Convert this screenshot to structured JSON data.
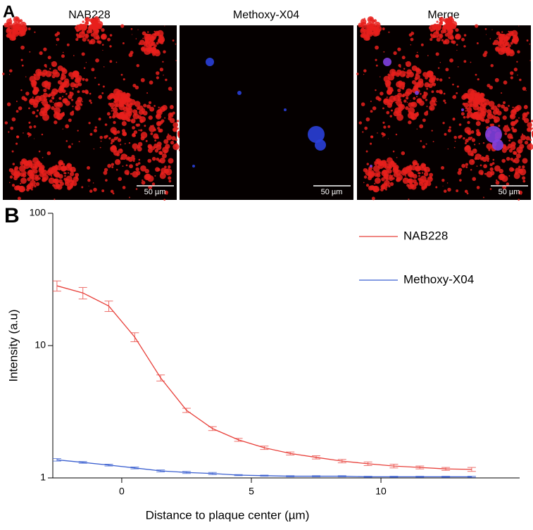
{
  "panels": {
    "a": {
      "label": "A",
      "images": [
        {
          "title": "NAB228",
          "scale_bar": "50 µm"
        },
        {
          "title": "Methoxy-X04",
          "scale_bar": "50 µm"
        },
        {
          "title": "Merge",
          "scale_bar": "50 µm"
        }
      ]
    },
    "b": {
      "label": "B"
    }
  },
  "chart_data": {
    "type": "line",
    "x_label": "Distance to plaque center (µm)",
    "y_label": "Intensity (a.u)",
    "log_y": true,
    "legend": "upper right",
    "x": [
      -2.5,
      -1.5,
      -0.5,
      0.5,
      1.5,
      2.5,
      3.5,
      4.5,
      5.5,
      6.5,
      7.5,
      8.5,
      9.5,
      10.5,
      11.5,
      12.5,
      13.5
    ],
    "series": [
      {
        "name": "NAB228",
        "color": "#e8403a",
        "values": [
          28.3,
          25,
          19.9,
          11.6,
          5.7,
          3.24,
          2.36,
          1.94,
          1.69,
          1.53,
          1.43,
          1.34,
          1.28,
          1.23,
          1.2,
          1.17,
          1.16
        ],
        "errors": [
          2.5,
          2.5,
          1.8,
          0.9,
          0.3,
          0.12,
          0.08,
          0.05,
          0.05,
          0.04,
          0.04,
          0.04,
          0.04,
          0.04,
          0.03,
          0.03,
          0.04
        ]
      },
      {
        "name": "Methoxy-X04",
        "color": "#3a5fd0",
        "values": [
          1.37,
          1.31,
          1.25,
          1.19,
          1.13,
          1.1,
          1.08,
          1.05,
          1.04,
          1.03,
          1.03,
          1.03,
          1.02,
          1.02,
          1.02,
          1.02,
          1.02
        ],
        "errors": [
          0.03,
          0.02,
          0.02,
          0.02,
          0.02,
          0.02,
          0.02,
          0.01,
          0.01,
          0.01,
          0.01,
          0.01,
          0.01,
          0.01,
          0.01,
          0.01,
          0.01
        ]
      }
    ],
    "xlim": [
      -2.66,
      15.35
    ],
    "ylim": [
      1,
      100
    ],
    "xticks": [
      0,
      5,
      10
    ],
    "yticks": [
      1,
      10,
      100
    ]
  }
}
